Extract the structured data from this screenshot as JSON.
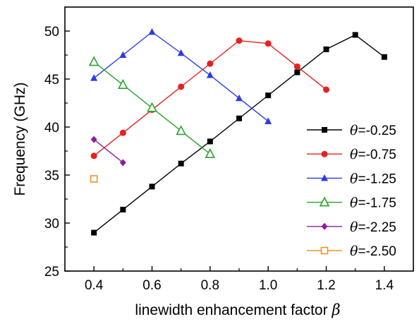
{
  "chart_data": {
    "type": "line",
    "xlabel": "linewidth enhancement factor",
    "xlabel_symbol": "β",
    "ylabel": "Frequency (GHz)",
    "xlim": [
      0.3,
      1.5
    ],
    "ylim": [
      25,
      52.5
    ],
    "x_ticks": [
      0.4,
      0.6,
      0.8,
      1.0,
      1.2,
      1.4
    ],
    "x_tick_labels": [
      "0.4",
      "0.6",
      "0.8",
      "1.0",
      "1.2",
      "1.4"
    ],
    "y_ticks": [
      25,
      30,
      35,
      40,
      45,
      50
    ],
    "y_tick_labels": [
      "25",
      "30",
      "35",
      "40",
      "45",
      "50"
    ],
    "grid": false,
    "legend_position": "bottom-right",
    "series": [
      {
        "symbol": "θ",
        "label": "=-0.25",
        "color": "#000000",
        "marker": "square-filled",
        "x": [
          0.4,
          0.5,
          0.6,
          0.7,
          0.8,
          0.9,
          1.0,
          1.1,
          1.2,
          1.3,
          1.4
        ],
        "y": [
          29.0,
          31.4,
          33.8,
          36.2,
          38.5,
          40.9,
          43.3,
          45.7,
          48.1,
          49.6,
          47.3
        ]
      },
      {
        "symbol": "θ",
        "label": "=-0.75",
        "color": "#e8201e",
        "marker": "circle-filled",
        "x": [
          0.4,
          0.5,
          0.6,
          0.7,
          0.8,
          0.9,
          1.0,
          1.1,
          1.2
        ],
        "y": [
          37.0,
          39.4,
          41.8,
          44.2,
          46.6,
          49.0,
          48.7,
          46.3,
          43.9
        ]
      },
      {
        "symbol": "θ",
        "label": "=-1.25",
        "color": "#2a3ce8",
        "marker": "triangle-filled",
        "x": [
          0.4,
          0.5,
          0.6,
          0.7,
          0.8,
          0.9,
          1.0
        ],
        "y": [
          45.1,
          47.5,
          49.9,
          47.7,
          45.4,
          43.0,
          40.6
        ]
      },
      {
        "symbol": "θ",
        "label": "=-1.75",
        "color": "#27a32a",
        "marker": "triangle-open",
        "x": [
          0.4,
          0.5,
          0.6,
          0.7,
          0.8
        ],
        "y": [
          46.8,
          44.4,
          42.0,
          39.6,
          37.2
        ]
      },
      {
        "symbol": "θ",
        "label": "=-2.25",
        "color": "#8a1fa0",
        "marker": "diamond-filled",
        "x": [
          0.4,
          0.5
        ],
        "y": [
          38.7,
          36.3
        ]
      },
      {
        "symbol": "θ",
        "label": "=-2.50",
        "color": "#f0941e",
        "marker": "square-open",
        "x": [
          0.4
        ],
        "y": [
          34.6
        ]
      }
    ]
  }
}
